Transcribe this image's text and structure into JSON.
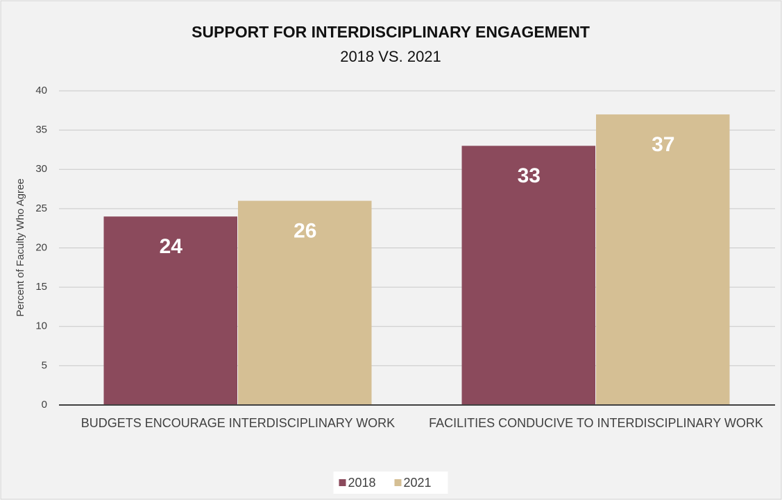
{
  "chart_data": {
    "type": "bar",
    "title": "SUPPORT FOR INTERDISCIPLINARY ENGAGEMENT",
    "subtitle": "2018 VS. 2021",
    "y_label": "Percent of Faculty Who Agree",
    "categories": [
      "BUDGETS ENCOURAGE INTERDISCIPLINARY WORK",
      "FACILITIES CONDUCIVE TO INTERDISCIPLINARY WORK"
    ],
    "series": [
      {
        "name": "2018",
        "color": "#8b4a5c",
        "values": [
          24,
          33
        ]
      },
      {
        "name": "2021",
        "color": "#d5bf94",
        "values": [
          26,
          37
        ]
      }
    ],
    "ylim": [
      0,
      40
    ],
    "yticks": [
      0,
      5,
      10,
      15,
      20,
      25,
      30,
      35,
      40
    ],
    "grid": true,
    "legend": "bottom"
  }
}
